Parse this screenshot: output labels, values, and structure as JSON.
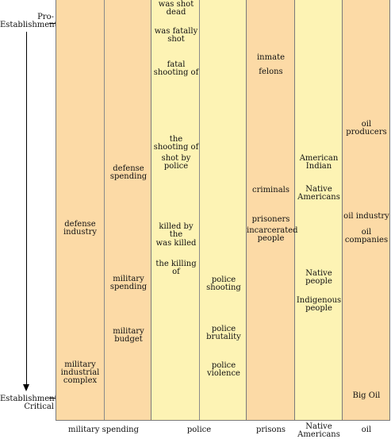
{
  "axis": {
    "top_label": "Pro-\nEstablishment",
    "bottom_label": "Establishment-\nCritical"
  },
  "columns": [
    {
      "label": "military spending",
      "color": "#fcdaa6",
      "terms": [
        "defense spending",
        "defense industry",
        "military spending",
        "military budget",
        "military industrial complex"
      ]
    },
    {
      "label": "police",
      "color": "#fdf3b4",
      "terms": [
        "was shot dead",
        "was fatally shot",
        "fatal shooting of",
        "the shooting of",
        "shot by police",
        "killed by the",
        "was killed",
        "the killing of",
        "police shooting",
        "police brutality",
        "police violence"
      ]
    },
    {
      "label": "prisons",
      "color": "#fcdaa6",
      "terms": [
        "inmate",
        "felons",
        "criminals",
        "prisoners",
        "incarcerated people"
      ]
    },
    {
      "label": "Native Americans",
      "color": "#fdf3b4",
      "terms": [
        "American Indian",
        "Native Americans",
        "Native people",
        "Indigenous people"
      ]
    },
    {
      "label": "oil",
      "color": "#fcdaa6",
      "terms": [
        "oil producers",
        "oil industry",
        "oil companies",
        "Big Oil"
      ]
    }
  ]
}
